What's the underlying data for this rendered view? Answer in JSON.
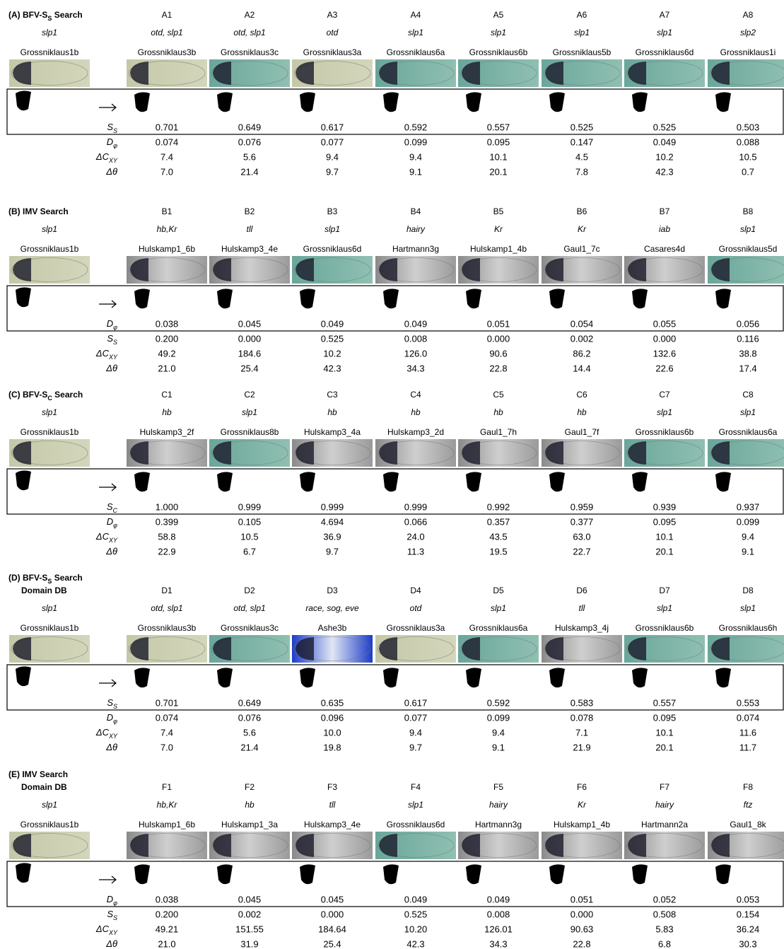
{
  "panels": [
    {
      "title": [
        {
          "t": "(A) BFV-"
        },
        {
          "t": "S"
        },
        {
          "t": "S",
          "sub": true
        },
        {
          "t": " Search"
        }
      ],
      "query": {
        "gene": "slp1",
        "name": "Grossniklaus1b"
      },
      "ids": [
        "A1",
        "A2",
        "A3",
        "A4",
        "A5",
        "A6",
        "A7",
        "A8"
      ],
      "genes": [
        "otd, slp1",
        "otd, slp1",
        "otd",
        "slp1",
        "slp1",
        "slp1",
        "slp1",
        "slp2"
      ],
      "names": [
        "Grossniklaus3b",
        "Grossniklaus3c",
        "Grossniklaus3a",
        "Grossniklaus6a",
        "Grossniklaus6b",
        "Grossniklaus5b",
        "Grossniklaus6d",
        "Grossniklaus1i"
      ],
      "rows": [
        {
          "label": {
            "t": "S",
            "sub": "S"
          },
          "values": [
            "0.701",
            "0.649",
            "0.617",
            "0.592",
            "0.557",
            "0.525",
            "0.525",
            "0.503"
          ]
        },
        {
          "label": {
            "t": "D",
            "sub": "φ"
          },
          "values": [
            "0.074",
            "0.076",
            "0.077",
            "0.099",
            "0.095",
            "0.147",
            "0.049",
            "0.088"
          ]
        },
        {
          "label": {
            "t": "ΔC",
            "sub": "XY"
          },
          "values": [
            "7.4",
            "5.6",
            "9.4",
            "9.4",
            "10.1",
            "4.5",
            "10.2",
            "10.5"
          ]
        },
        {
          "label": {
            "t": "Δθ"
          },
          "values": [
            "7.0",
            "21.4",
            "9.7",
            "9.1",
            "20.1",
            "7.8",
            "42.3",
            "0.7"
          ]
        }
      ]
    },
    {
      "title": [
        {
          "t": "(B) IMV Search"
        }
      ],
      "query": {
        "gene": "slp1",
        "name": "Grossniklaus1b"
      },
      "ids": [
        "B1",
        "B2",
        "B3",
        "B4",
        "B5",
        "B6",
        "B7",
        "B8"
      ],
      "genes": [
        "hb,Kr",
        "tll",
        "slp1",
        "hairy",
        "Kr",
        "Kr",
        "iab",
        "slp1"
      ],
      "names": [
        "Hulskamp1_6b",
        "Hulskamp3_4e",
        "Grossniklaus6d",
        "Hartmann3g",
        "Hulskamp1_4b",
        "Gaul1_7c",
        "Casares4d",
        "Grossniklaus5d"
      ],
      "rows": [
        {
          "label": {
            "t": "D",
            "sub": "φ"
          },
          "values": [
            "0.038",
            "0.045",
            "0.049",
            "0.049",
            "0.051",
            "0.054",
            "0.055",
            "0.056"
          ]
        },
        {
          "label": {
            "t": "S",
            "sub": "S"
          },
          "values": [
            "0.200",
            "0.000",
            "0.525",
            "0.008",
            "0.000",
            "0.002",
            "0.000",
            "0.116"
          ]
        },
        {
          "label": {
            "t": "ΔC",
            "sub": "XY"
          },
          "values": [
            "49.2",
            "184.6",
            "10.2",
            "126.0",
            "90.6",
            "86.2",
            "132.6",
            "38.8"
          ]
        },
        {
          "label": {
            "t": "Δθ"
          },
          "values": [
            "21.0",
            "25.4",
            "42.3",
            "34.3",
            "22.8",
            "14.4",
            "22.6",
            "17.4"
          ]
        }
      ]
    },
    {
      "title": [
        {
          "t": "(C) BFV-"
        },
        {
          "t": "S"
        },
        {
          "t": "C",
          "sub": true
        },
        {
          "t": " Search"
        }
      ],
      "query": {
        "gene": "slp1",
        "name": "Grossniklaus1b"
      },
      "ids": [
        "C1",
        "C2",
        "C3",
        "C4",
        "C5",
        "C6",
        "C7",
        "C8"
      ],
      "genes": [
        "hb",
        "slp1",
        "hb",
        "hb",
        "hb",
        "hb",
        "slp1",
        "slp1"
      ],
      "names": [
        "Hulskamp3_2f",
        "Grossniklaus8b",
        "Hulskamp3_4a",
        "Hulskamp3_2d",
        "Gaul1_7h",
        "Gaul1_7f",
        "Grossniklaus6b",
        "Grossniklaus6a"
      ],
      "rows": [
        {
          "label": {
            "t": "S",
            "sub": "C"
          },
          "values": [
            "1.000",
            "0.999",
            "0.999",
            "0.999",
            "0.992",
            "0.959",
            "0.939",
            "0.937"
          ]
        },
        {
          "label": {
            "t": "D",
            "sub": "φ"
          },
          "values": [
            "0.399",
            "0.105",
            "4.694",
            "0.066",
            "0.357",
            "0.377",
            "0.095",
            "0.099"
          ]
        },
        {
          "label": {
            "t": "ΔC",
            "sub": "XY"
          },
          "values": [
            "58.8",
            "10.5",
            "36.9",
            "24.0",
            "43.5",
            "63.0",
            "10.1",
            "9.4"
          ]
        },
        {
          "label": {
            "t": "Δθ"
          },
          "values": [
            "22.9",
            "6.7",
            "9.7",
            "11.3",
            "19.5",
            "22.7",
            "20.1",
            "9.1"
          ]
        }
      ]
    },
    {
      "title": [
        {
          "t": "(D) BFV-"
        },
        {
          "t": "S"
        },
        {
          "t": "S",
          "sub": true
        },
        {
          "t": " Search"
        }
      ],
      "title2": "Domain DB",
      "query": {
        "gene": "slp1",
        "name": "Grossniklaus1b"
      },
      "ids": [
        "D1",
        "D2",
        "D3",
        "D4",
        "D5",
        "D6",
        "D7",
        "D8"
      ],
      "genes": [
        "otd, slp1",
        "otd, slp1",
        "race, sog, eve",
        "otd",
        "slp1",
        "tll",
        "slp1",
        "slp1"
      ],
      "names": [
        "Grossniklaus3b",
        "Grossniklaus3c",
        "Ashe3b",
        "Grossniklaus3a",
        "Grossniklaus6a",
        "Hulskamp3_4j",
        "Grossniklaus6b",
        "Grossniklaus6h"
      ],
      "rows": [
        {
          "label": {
            "t": "S",
            "sub": "S"
          },
          "values": [
            "0.701",
            "0.649",
            "0.635",
            "0.617",
            "0.592",
            "0.583",
            "0.557",
            "0.553"
          ]
        },
        {
          "label": {
            "t": "D",
            "sub": "φ"
          },
          "values": [
            "0.074",
            "0.076",
            "0.096",
            "0.077",
            "0.099",
            "0.078",
            "0.095",
            "0.074"
          ]
        },
        {
          "label": {
            "t": "ΔC",
            "sub": "XY"
          },
          "values": [
            "7.4",
            "5.6",
            "10.0",
            "9.4",
            "9.4",
            "7.1",
            "10.1",
            "11.6"
          ]
        },
        {
          "label": {
            "t": "Δθ"
          },
          "values": [
            "7.0",
            "21.4",
            "19.8",
            "9.7",
            "9.1",
            "21.9",
            "20.1",
            "11.7"
          ]
        }
      ]
    },
    {
      "title": [
        {
          "t": "(E) IMV Search"
        }
      ],
      "title2": "Domain DB",
      "query": {
        "gene": "slp1",
        "name": "Grossniklaus1b"
      },
      "ids": [
        "F1",
        "F2",
        "F3",
        "F4",
        "F5",
        "F6",
        "F7",
        "F8"
      ],
      "genes": [
        "hb,Kr",
        "hb",
        "tll",
        "slp1",
        "hairy",
        "Kr",
        "hairy",
        "ftz"
      ],
      "names": [
        "Hulskamp1_6b",
        "Hulskamp1_3a",
        "Hulskamp3_4e",
        "Grossniklaus6d",
        "Hartmann3g",
        "Hulskamp1_4b",
        "Hartmann2a",
        "Gaul1_8k"
      ],
      "rows": [
        {
          "label": {
            "t": "D",
            "sub": "φ"
          },
          "values": [
            "0.038",
            "0.045",
            "0.045",
            "0.049",
            "0.049",
            "0.051",
            "0.052",
            "0.053"
          ]
        },
        {
          "label": {
            "t": "S",
            "sub": "S"
          },
          "values": [
            "0.200",
            "0.002",
            "0.000",
            "0.525",
            "0.008",
            "0.000",
            "0.508",
            "0.154"
          ]
        },
        {
          "label": {
            "t": "ΔC",
            "sub": "XY"
          },
          "values": [
            "49.21",
            "151.55",
            "184.64",
            "10.20",
            "126.01",
            "90.63",
            "5.83",
            "36.24"
          ]
        },
        {
          "label": {
            "t": "Δθ"
          },
          "values": [
            "21.0",
            "31.9",
            "25.4",
            "42.3",
            "34.3",
            "22.8",
            "6.8",
            "30.3"
          ]
        }
      ]
    }
  ]
}
